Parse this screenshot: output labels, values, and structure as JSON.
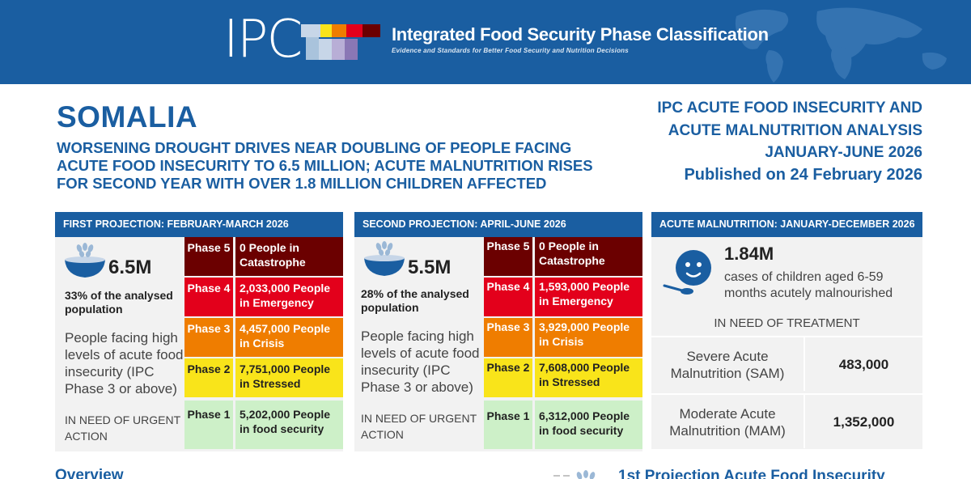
{
  "banner": {
    "logo": "IPC",
    "org_name": "Integrated Food Security Phase Classification",
    "org_sub": "Evidence and Standards for Better Food Security and Nutrition Decisions",
    "colors": {
      "bg": "#1a5ea1",
      "blocks": [
        "#c7d6e8",
        "#a9c3dc",
        "#f9e41a",
        "#ef7d00",
        "#e3001b",
        "#6b0000",
        "#8a77b5"
      ]
    }
  },
  "header": {
    "country": "SOMALIA",
    "headline": "WORSENING DROUGHT DRIVES NEAR DOUBLING OF PEOPLE FACING ACUTE FOOD INSECURITY TO 6.5 MILLION; ACUTE MALNUTRITION RISES FOR SECOND YEAR WITH OVER 1.8 MILLION CHILDREN AFFECTED",
    "report_line1": "IPC ACUTE FOOD INSECURITY AND",
    "report_line2": "ACUTE MALNUTRITION ANALYSIS",
    "report_line3": "JANUARY-JUNE 2026",
    "published": "Published on 24 February 2026"
  },
  "first": {
    "title": "FIRST PROJECTION: FEBRUARY-MARCH 2026",
    "total": "6.5M",
    "pct": "33% of the analysed population",
    "desc": "People facing high levels of acute food insecurity  (IPC Phase 3 or above)",
    "need": "IN NEED OF URGENT ACTION",
    "phases": [
      {
        "label": "Phase 5",
        "value": "0 People in Catastrophe"
      },
      {
        "label": "Phase 4",
        "value": "2,033,000 People in Emergency"
      },
      {
        "label": "Phase 3",
        "value": "4,457,000 People in Crisis"
      },
      {
        "label": "Phase 2",
        "value": "7,751,000 People in Stressed"
      },
      {
        "label": "Phase 1",
        "value": "5,202,000 People in food security"
      }
    ]
  },
  "second": {
    "title": "SECOND PROJECTION: APRIL-JUNE 2026",
    "total": "5.5M",
    "pct": "28% of the analysed population",
    "desc": "People facing high levels of acute food insecurity  (IPC Phase 3 or above)",
    "need": "IN NEED OF URGENT ACTION",
    "phases": [
      {
        "label": "Phase 5",
        "value": "0 People in Catastrophe"
      },
      {
        "label": "Phase 4",
        "value": "1,593,000 People in Emergency"
      },
      {
        "label": "Phase 3",
        "value": "3,929,000 People in Crisis"
      },
      {
        "label": "Phase 2",
        "value": "7,608,000 People in Stressed"
      },
      {
        "label": "Phase 1",
        "value": "6,312,000 People in food security"
      }
    ]
  },
  "malnutrition": {
    "title": "ACUTE MALNUTRITION: JANUARY-DECEMBER 2026",
    "total": "1.84M",
    "desc": "cases of children aged 6-59 months acutely  malnourished",
    "need": "IN NEED OF TREATMENT",
    "rows": [
      {
        "label": "Severe Acute Malnutrition (SAM)",
        "value": "483,000"
      },
      {
        "label": "Moderate Acute Malnutrition (MAM)",
        "value": "1,352,000"
      }
    ]
  },
  "footer": {
    "overview": "Overview",
    "projection_title": "1st Projection Acute Food Insecurity"
  },
  "icons": [
    "grain-bowl-icon",
    "child-face-icon"
  ]
}
